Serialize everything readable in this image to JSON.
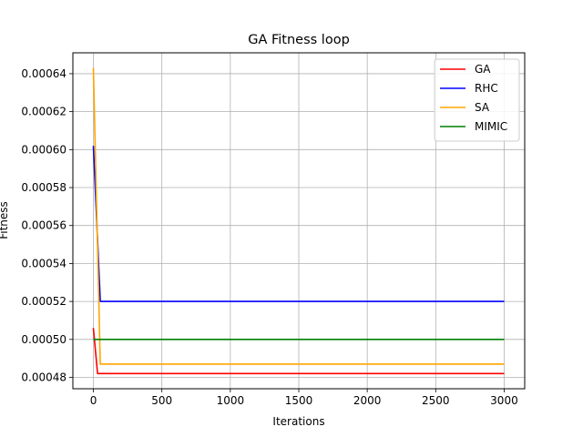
{
  "chart_data": {
    "type": "line",
    "title": "GA Fitness loop",
    "xlabel": "Iterations",
    "ylabel": "Fitness",
    "xlim": [
      -150,
      3150
    ],
    "ylim": [
      0.000474,
      0.000651
    ],
    "xticks": [
      0,
      500,
      1000,
      1500,
      2000,
      2500,
      3000
    ],
    "yticks": [
      0.00048,
      0.0005,
      0.00052,
      0.00054,
      0.00056,
      0.00058,
      0.0006,
      0.00062,
      0.00064
    ],
    "ytick_labels": [
      "0.00048",
      "0.00050",
      "0.00052",
      "0.00054",
      "0.00056",
      "0.00058",
      "0.00060",
      "0.00062",
      "0.00064"
    ],
    "xtick_labels": [
      "0",
      "500",
      "1000",
      "1500",
      "2000",
      "2500",
      "3000"
    ],
    "grid": true,
    "legend_position": "top-right",
    "series": [
      {
        "name": "GA",
        "color": "#ff0000",
        "x": [
          0,
          30,
          3000
        ],
        "y": [
          0.000506,
          0.000482,
          0.000482
        ]
      },
      {
        "name": "RHC",
        "color": "#0000ff",
        "x": [
          0,
          50,
          3000
        ],
        "y": [
          0.000602,
          0.00052,
          0.00052
        ]
      },
      {
        "name": "SA",
        "color": "#ffa500",
        "x": [
          0,
          50,
          3000
        ],
        "y": [
          0.000643,
          0.000487,
          0.000487
        ]
      },
      {
        "name": "MIMIC",
        "color": "#008000",
        "x": [
          0,
          3000
        ],
        "y": [
          0.0005,
          0.0005
        ]
      }
    ]
  }
}
